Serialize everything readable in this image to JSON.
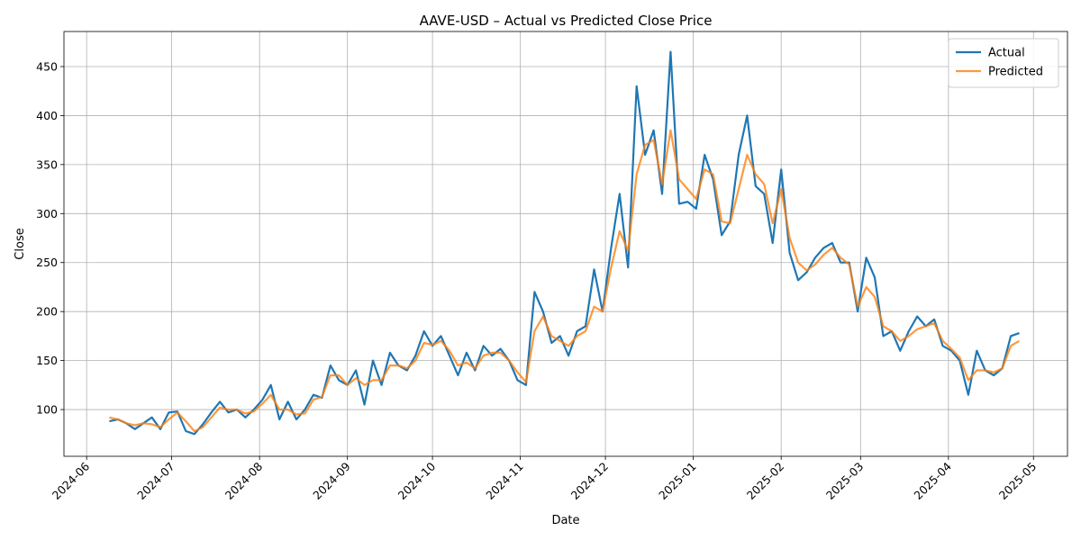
{
  "chart_data": {
    "type": "line",
    "title": "AAVE-USD – Actual vs Predicted Close Price",
    "xlabel": "Date",
    "ylabel": "Close",
    "x": [
      "2024-06-09",
      "2024-06-12",
      "2024-06-15",
      "2024-06-18",
      "2024-06-21",
      "2024-06-24",
      "2024-06-27",
      "2024-06-30",
      "2024-07-03",
      "2024-07-06",
      "2024-07-09",
      "2024-07-12",
      "2024-07-15",
      "2024-07-18",
      "2024-07-21",
      "2024-07-24",
      "2024-07-27",
      "2024-07-30",
      "2024-08-02",
      "2024-08-05",
      "2024-08-08",
      "2024-08-11",
      "2024-08-14",
      "2024-08-17",
      "2024-08-20",
      "2024-08-23",
      "2024-08-26",
      "2024-08-29",
      "2024-09-01",
      "2024-09-04",
      "2024-09-07",
      "2024-09-10",
      "2024-09-13",
      "2024-09-16",
      "2024-09-19",
      "2024-09-22",
      "2024-09-25",
      "2024-09-28",
      "2024-10-01",
      "2024-10-04",
      "2024-10-07",
      "2024-10-10",
      "2024-10-13",
      "2024-10-16",
      "2024-10-19",
      "2024-10-22",
      "2024-10-25",
      "2024-10-28",
      "2024-10-31",
      "2024-11-03",
      "2024-11-06",
      "2024-11-09",
      "2024-11-12",
      "2024-11-15",
      "2024-11-18",
      "2024-11-21",
      "2024-11-24",
      "2024-11-27",
      "2024-11-30",
      "2024-12-03",
      "2024-12-06",
      "2024-12-09",
      "2024-12-12",
      "2024-12-15",
      "2024-12-18",
      "2024-12-21",
      "2024-12-24",
      "2024-12-27",
      "2024-12-30",
      "2025-01-02",
      "2025-01-05",
      "2025-01-08",
      "2025-01-11",
      "2025-01-14",
      "2025-01-17",
      "2025-01-20",
      "2025-01-23",
      "2025-01-26",
      "2025-01-29",
      "2025-02-01",
      "2025-02-04",
      "2025-02-07",
      "2025-02-10",
      "2025-02-13",
      "2025-02-16",
      "2025-02-19",
      "2025-02-22",
      "2025-02-25",
      "2025-02-28",
      "2025-03-03",
      "2025-03-06",
      "2025-03-09",
      "2025-03-12",
      "2025-03-15",
      "2025-03-18",
      "2025-03-21",
      "2025-03-24",
      "2025-03-27",
      "2025-03-30",
      "2025-04-02",
      "2025-04-05",
      "2025-04-08",
      "2025-04-11",
      "2025-04-14",
      "2025-04-17",
      "2025-04-20",
      "2025-04-23",
      "2025-04-26"
    ],
    "series": [
      {
        "name": "Actual",
        "color": "#1f77b4",
        "values": [
          88,
          90,
          86,
          80,
          86,
          92,
          80,
          97,
          98,
          78,
          75,
          85,
          97,
          108,
          97,
          100,
          92,
          100,
          110,
          125,
          90,
          108,
          90,
          100,
          115,
          112,
          145,
          130,
          125,
          140,
          105,
          150,
          125,
          158,
          145,
          140,
          155,
          180,
          165,
          175,
          155,
          135,
          158,
          140,
          165,
          155,
          162,
          150,
          130,
          125,
          220,
          200,
          168,
          175,
          155,
          180,
          185,
          243,
          200,
          265,
          320,
          245,
          430,
          360,
          385,
          320,
          465,
          310,
          312,
          305,
          360,
          335,
          278,
          292,
          360,
          400,
          328,
          320,
          270,
          345,
          260,
          232,
          240,
          255,
          265,
          270,
          250,
          250,
          200,
          255,
          235,
          175,
          180,
          160,
          180,
          195,
          185,
          192,
          165,
          160,
          150,
          115,
          160,
          140,
          135,
          142,
          175,
          178
        ]
      },
      {
        "name": "Predicted",
        "color": "#ff7f0e",
        "values": [
          92,
          90,
          86,
          84,
          86,
          85,
          82,
          90,
          97,
          88,
          78,
          82,
          92,
          102,
          100,
          100,
          96,
          98,
          106,
          115,
          100,
          100,
          95,
          96,
          110,
          113,
          135,
          135,
          125,
          132,
          125,
          130,
          130,
          145,
          145,
          142,
          150,
          168,
          166,
          170,
          160,
          145,
          148,
          142,
          155,
          158,
          158,
          150,
          138,
          128,
          180,
          195,
          175,
          170,
          165,
          175,
          180,
          205,
          200,
          245,
          282,
          262,
          340,
          370,
          375,
          330,
          385,
          335,
          325,
          315,
          345,
          340,
          292,
          290,
          325,
          360,
          340,
          330,
          290,
          325,
          275,
          250,
          242,
          248,
          258,
          265,
          255,
          248,
          205,
          225,
          215,
          185,
          180,
          170,
          175,
          182,
          185,
          188,
          170,
          162,
          153,
          130,
          140,
          140,
          138,
          142,
          165,
          170
        ]
      }
    ],
    "xlim": [
      "2024-05-24",
      "2025-05-13"
    ],
    "xticks": [
      {
        "value": "2024-06-01",
        "label": "2024-06"
      },
      {
        "value": "2024-07-01",
        "label": "2024-07"
      },
      {
        "value": "2024-08-01",
        "label": "2024-08"
      },
      {
        "value": "2024-09-01",
        "label": "2024-09"
      },
      {
        "value": "2024-10-01",
        "label": "2024-10"
      },
      {
        "value": "2024-11-01",
        "label": "2024-11"
      },
      {
        "value": "2024-12-01",
        "label": "2024-12"
      },
      {
        "value": "2025-01-01",
        "label": "2025-01"
      },
      {
        "value": "2025-02-01",
        "label": "2025-02"
      },
      {
        "value": "2025-03-01",
        "label": "2025-03"
      },
      {
        "value": "2025-04-01",
        "label": "2025-04"
      },
      {
        "value": "2025-05-01",
        "label": "2025-05"
      }
    ],
    "ylim": [
      52.3,
      485.8
    ],
    "yticks": [
      100,
      150,
      200,
      250,
      300,
      350,
      400,
      450
    ],
    "grid": true,
    "legend": "upper right"
  }
}
